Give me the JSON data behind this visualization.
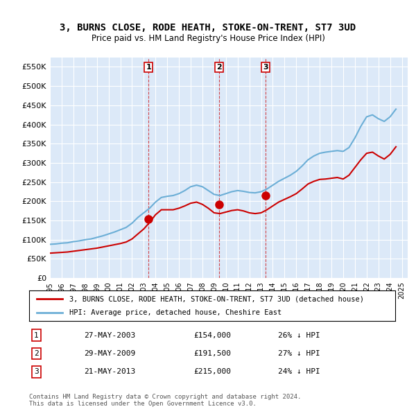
{
  "title": "3, BURNS CLOSE, RODE HEATH, STOKE-ON-TRENT, ST7 3UD",
  "subtitle": "Price paid vs. HM Land Registry's House Price Index (HPI)",
  "legend_line1": "3, BURNS CLOSE, RODE HEATH, STOKE-ON-TRENT, ST7 3UD (detached house)",
  "legend_line2": "HPI: Average price, detached house, Cheshire East",
  "footnote": "Contains HM Land Registry data © Crown copyright and database right 2024.\nThis data is licensed under the Open Government Licence v3.0.",
  "ylabel": "",
  "xlabel": "",
  "ylim": [
    0,
    575000
  ],
  "yticks": [
    0,
    50000,
    100000,
    150000,
    200000,
    250000,
    300000,
    350000,
    400000,
    450000,
    500000,
    550000
  ],
  "ytick_labels": [
    "£0",
    "£50K",
    "£100K",
    "£150K",
    "£200K",
    "£250K",
    "£300K",
    "£350K",
    "£400K",
    "£450K",
    "£500K",
    "£550K"
  ],
  "background_color": "#dce9f8",
  "plot_bg_color": "#dce9f8",
  "fig_bg_color": "#ffffff",
  "hpi_color": "#6baed6",
  "price_color": "#cc0000",
  "marker_color": "#cc0000",
  "vline_color": "#cc0000",
  "transaction_labels": [
    "1",
    "2",
    "3"
  ],
  "transactions": [
    {
      "label": "1",
      "date": "27-MAY-2003",
      "price": 154000,
      "pct": "26%",
      "x_year": 2003.4
    },
    {
      "label": "2",
      "date": "29-MAY-2009",
      "price": 191500,
      "pct": "27%",
      "x_year": 2009.4
    },
    {
      "label": "3",
      "date": "21-MAY-2013",
      "price": 215000,
      "pct": "24%",
      "x_year": 2013.4
    }
  ],
  "hpi_data": {
    "years": [
      1995,
      1995.5,
      1996,
      1996.5,
      1997,
      1997.5,
      1998,
      1998.5,
      1999,
      1999.5,
      2000,
      2000.5,
      2001,
      2001.5,
      2002,
      2002.5,
      2003,
      2003.5,
      2004,
      2004.5,
      2005,
      2005.5,
      2006,
      2006.5,
      2007,
      2007.5,
      2008,
      2008.5,
      2009,
      2009.5,
      2010,
      2010.5,
      2011,
      2011.5,
      2012,
      2012.5,
      2013,
      2013.5,
      2014,
      2014.5,
      2015,
      2015.5,
      2016,
      2016.5,
      2017,
      2017.5,
      2018,
      2018.5,
      2019,
      2019.5,
      2020,
      2020.5,
      2021,
      2021.5,
      2022,
      2022.5,
      2023,
      2023.5,
      2024,
      2024.5
    ],
    "values": [
      88000,
      89000,
      91000,
      92000,
      95000,
      97000,
      100000,
      102000,
      106000,
      110000,
      115000,
      120000,
      126000,
      132000,
      143000,
      158000,
      170000,
      182000,
      198000,
      210000,
      213000,
      215000,
      220000,
      228000,
      238000,
      242000,
      238000,
      228000,
      218000,
      215000,
      220000,
      225000,
      228000,
      226000,
      223000,
      222000,
      225000,
      232000,
      242000,
      252000,
      260000,
      268000,
      278000,
      292000,
      308000,
      318000,
      325000,
      328000,
      330000,
      332000,
      330000,
      340000,
      365000,
      395000,
      420000,
      425000,
      415000,
      408000,
      420000,
      440000
    ]
  },
  "price_data": {
    "years": [
      1995,
      1995.5,
      1996,
      1996.5,
      1997,
      1997.5,
      1998,
      1998.5,
      1999,
      1999.5,
      2000,
      2000.5,
      2001,
      2001.5,
      2002,
      2002.5,
      2003,
      2003.5,
      2004,
      2004.5,
      2005,
      2005.5,
      2006,
      2006.5,
      2007,
      2007.5,
      2008,
      2008.5,
      2009,
      2009.5,
      2010,
      2010.5,
      2011,
      2011.5,
      2012,
      2012.5,
      2013,
      2013.5,
      2014,
      2014.5,
      2015,
      2015.5,
      2016,
      2016.5,
      2017,
      2017.5,
      2018,
      2018.5,
      2019,
      2019.5,
      2020,
      2020.5,
      2021,
      2021.5,
      2022,
      2022.5,
      2023,
      2023.5,
      2024,
      2024.5
    ],
    "values": [
      65000,
      66000,
      67000,
      68000,
      70000,
      72000,
      74000,
      76000,
      78000,
      81000,
      84000,
      87000,
      90000,
      94000,
      102000,
      115000,
      128000,
      145000,
      165000,
      178000,
      178000,
      178000,
      182000,
      188000,
      195000,
      198000,
      192000,
      182000,
      170000,
      168000,
      172000,
      176000,
      178000,
      175000,
      170000,
      168000,
      170000,
      178000,
      188000,
      198000,
      205000,
      212000,
      220000,
      232000,
      245000,
      252000,
      257000,
      258000,
      260000,
      262000,
      258000,
      268000,
      288000,
      308000,
      325000,
      328000,
      318000,
      310000,
      322000,
      342000
    ]
  },
  "xtick_years": [
    1995,
    1996,
    1997,
    1998,
    1999,
    2000,
    2001,
    2002,
    2003,
    2004,
    2005,
    2006,
    2007,
    2008,
    2009,
    2010,
    2011,
    2012,
    2013,
    2014,
    2015,
    2016,
    2017,
    2018,
    2019,
    2020,
    2021,
    2022,
    2023,
    2024,
    2025
  ]
}
